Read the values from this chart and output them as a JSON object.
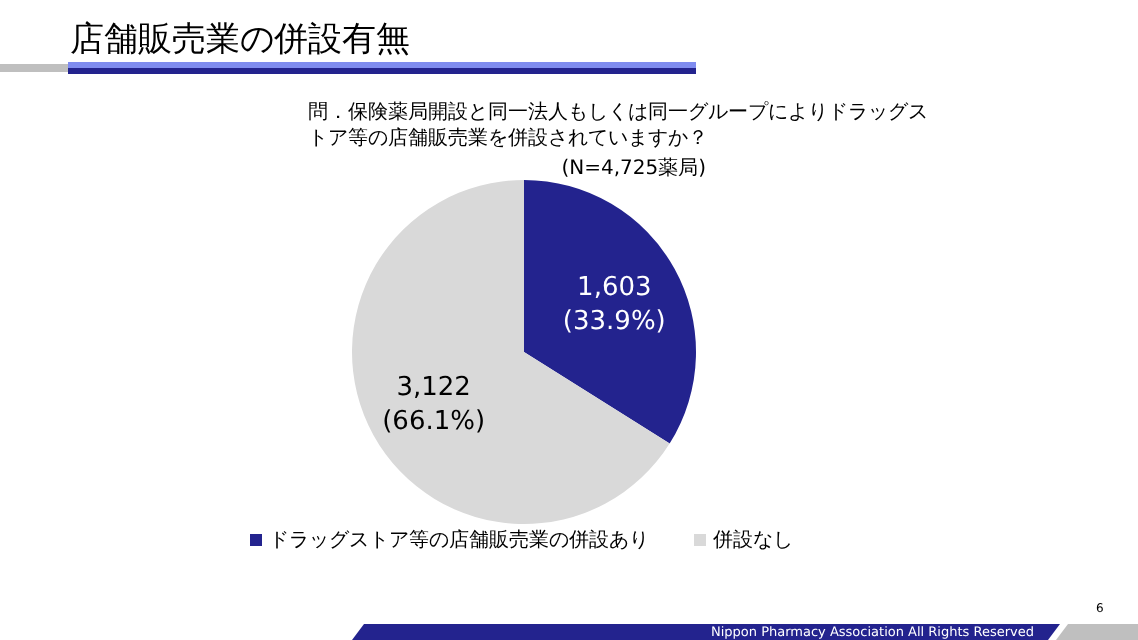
{
  "chart_data": {
    "type": "pie",
    "title": "店舗販売業の併設有無",
    "subtitle": "問．保険薬局開設と同一法人もしくは同一グループによりドラッグストア等の店舗販売業を併設されていますか？",
    "categories": [
      "ドラッグストア等の店舗販売業の併設あり",
      "併設なし"
    ],
    "values": [
      1603,
      3122
    ],
    "value_labels": [
      "1,603 (33.9%)",
      "3,122 (66.1%)"
    ],
    "colors": [
      "#23238e",
      "#d9d9d9"
    ],
    "legend": "bottom",
    "annotations": [
      "(N=4,725薬局)",
      "Nippon Pharmacy Association All Rights Reserved",
      "6"
    ]
  }
}
